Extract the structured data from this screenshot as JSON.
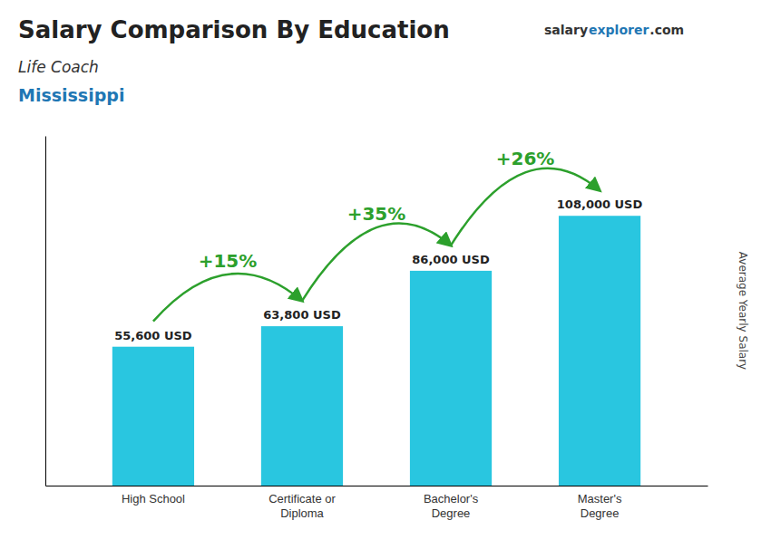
{
  "chart_data": {
    "type": "bar",
    "title": "Salary Comparison By Education",
    "subtitles": [
      "Life Coach",
      "Mississippi"
    ],
    "watermark": [
      "salary",
      "explorer",
      ".com"
    ],
    "ylabel": "Average Yearly Salary",
    "categories": [
      "High School",
      "Certificate or\nDiploma",
      "Bachelor's\nDegree",
      "Master's\nDegree"
    ],
    "values": [
      55600,
      63800,
      86000,
      108000
    ],
    "value_labels": [
      "55,600 USD",
      "63,800 USD",
      "86,000 USD",
      "108,000 USD"
    ],
    "data_labels": true,
    "annotations": [
      "+15%",
      "+35%",
      "+26%"
    ],
    "color": "#29C6E0",
    "ylim": [
      0,
      140000
    ],
    "tick_labels": "x",
    "grid": false
  }
}
